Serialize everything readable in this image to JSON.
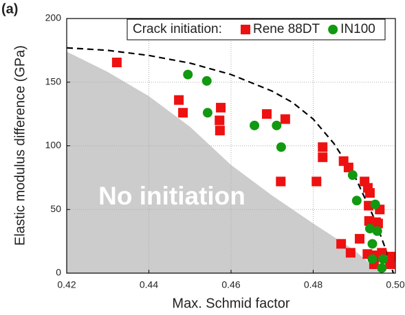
{
  "chart_data": {
    "type": "scatter",
    "panel_label": "(a)",
    "xlabel": "Max. Schmid factor",
    "ylabel": "Elastic modulus difference (GPa)",
    "annotation": "No initiation",
    "legend_title": "Crack initiation:",
    "xlim": [
      0.42,
      0.5
    ],
    "ylim": [
      0,
      200
    ],
    "xticks": [
      0.42,
      0.44,
      0.46,
      0.48,
      {
        "value": 0.5,
        "label": "0.50"
      }
    ],
    "yticks": [
      0,
      50,
      100,
      150,
      200
    ],
    "grid": true,
    "series": [
      {
        "name": "Rene 88DT",
        "color": "#ee1111",
        "marker": "square",
        "x": [
          0.4322,
          0.4473,
          0.4483,
          0.4575,
          0.4572,
          0.4573,
          0.4687,
          0.4732,
          0.4721,
          0.4808,
          0.4823,
          0.4823,
          0.4874,
          0.4886,
          0.4868,
          0.4891,
          0.4913,
          0.4925,
          0.4933,
          0.4938,
          0.4935,
          0.4936,
          0.4953,
          0.4962,
          0.4958,
          0.4932,
          0.495,
          0.4967,
          0.4992,
          0.4987,
          0.4948
        ],
        "values": [
          165.5,
          136,
          126,
          130,
          120,
          112,
          125,
          121,
          72,
          72,
          99,
          91,
          88,
          83,
          23,
          16,
          27,
          72,
          67,
          63,
          53,
          41,
          40,
          50,
          39,
          15,
          14,
          16,
          13,
          7,
          7
        ]
      },
      {
        "name": "IN100",
        "color": "#119911",
        "marker": "circle",
        "x": [
          0.4495,
          0.4541,
          0.4543,
          0.4657,
          0.4711,
          0.4722,
          0.4896,
          0.4906,
          0.4951,
          0.4938,
          0.4956,
          0.4944,
          0.4944,
          0.497,
          0.4967
        ],
        "values": [
          156,
          151,
          126,
          116,
          116,
          99,
          77,
          57,
          54,
          35,
          33,
          23,
          11,
          11,
          4
        ]
      }
    ],
    "curve": {
      "x": [
        0.42,
        0.43,
        0.44,
        0.45,
        0.46,
        0.47,
        0.475,
        0.48,
        0.485,
        0.49,
        0.495,
        0.4975,
        0.4995
      ],
      "y": [
        177,
        175,
        171,
        165,
        156,
        143,
        134,
        121,
        102,
        77,
        42,
        20,
        0
      ]
    },
    "region": {
      "x": [
        0.42,
        0.43,
        0.44,
        0.45,
        0.46,
        0.47,
        0.48,
        0.49,
        0.4965
      ],
      "y": [
        174,
        158,
        139,
        115,
        85,
        61,
        39,
        18,
        0
      ],
      "color": "#cccccc"
    }
  }
}
